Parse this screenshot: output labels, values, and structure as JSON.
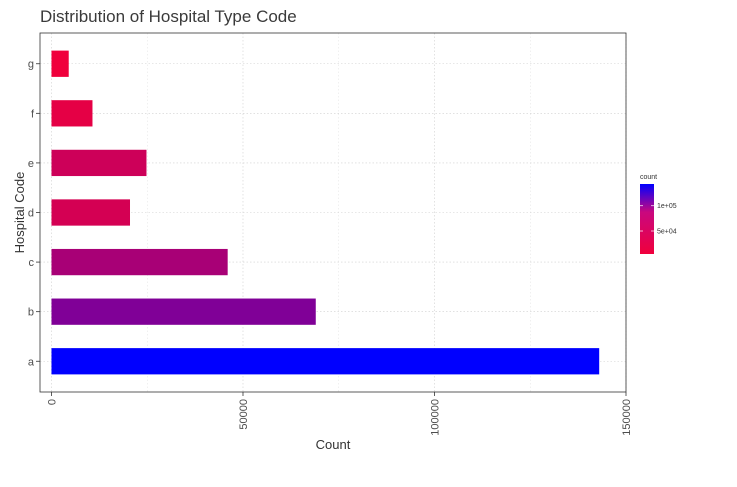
{
  "chart_data": {
    "type": "bar",
    "orientation": "horizontal",
    "title": "Distribution of Hospital Type Code",
    "xlabel": "Count",
    "ylabel": "Hospital Code",
    "categories": [
      "a",
      "b",
      "c",
      "d",
      "e",
      "f",
      "g"
    ],
    "values": [
      143000,
      69000,
      46000,
      20500,
      24800,
      10700,
      4500
    ],
    "xlim": [
      -3000,
      150000
    ],
    "x_ticks": [
      0,
      50000,
      100000,
      150000
    ],
    "x_tick_labels": [
      "0",
      "50000",
      "100000",
      "150000"
    ],
    "grid": true,
    "color_low": "#f0003c",
    "color_high": "#0000ff",
    "legend": {
      "title": "count",
      "position": "right",
      "labels": [
        "1e+05",
        "5e+04"
      ],
      "label_values": [
        100000,
        50000
      ]
    }
  }
}
